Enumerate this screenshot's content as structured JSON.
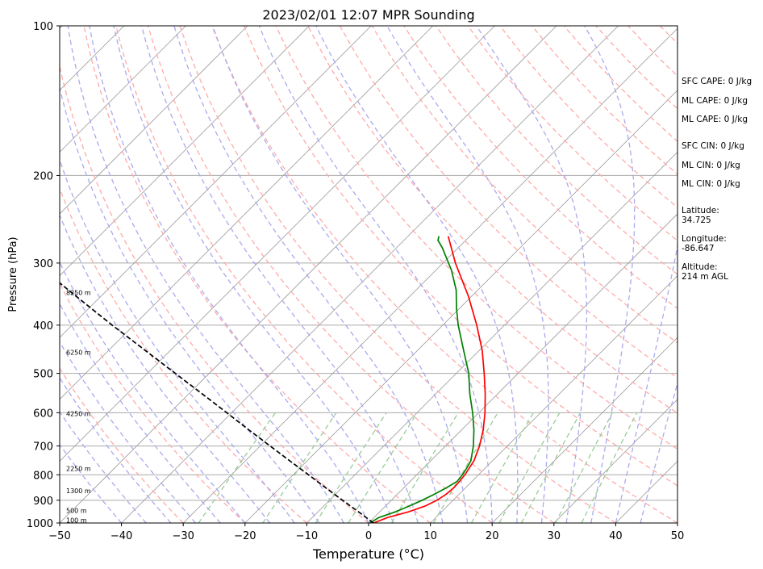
{
  "chart_data": {
    "type": "line",
    "title": "2023/02/01 12:07 MPR Sounding",
    "xlabel": "Temperature (°C)",
    "ylabel": "Pressure (hPa)",
    "xlim": [
      -50,
      50
    ],
    "ylim": [
      1000,
      100
    ],
    "y_scale": "log",
    "x_ticks": [
      -50,
      -40,
      -30,
      -20,
      -10,
      0,
      10,
      20,
      30,
      40,
      50
    ],
    "y_ticks": [
      1000,
      900,
      800,
      700,
      600,
      500,
      400,
      300,
      200,
      100
    ],
    "grid": true,
    "skew": true,
    "series": [
      {
        "color": "#ff0000",
        "points": [
          [
            1000,
            0.8
          ],
          [
            975,
            2.2
          ],
          [
            950,
            4.6
          ],
          [
            925,
            6.4
          ],
          [
            900,
            7.4
          ],
          [
            875,
            7.9
          ],
          [
            850,
            8.1
          ],
          [
            825,
            8.0
          ],
          [
            800,
            7.8
          ],
          [
            775,
            7.4
          ],
          [
            750,
            7.0
          ],
          [
            700,
            5.5
          ],
          [
            650,
            3.5
          ],
          [
            600,
            1.0
          ],
          [
            550,
            -2.0
          ],
          [
            500,
            -5.5
          ],
          [
            450,
            -9.5
          ],
          [
            400,
            -14.5
          ],
          [
            350,
            -20.5
          ],
          [
            300,
            -28.0
          ],
          [
            265,
            -33.5
          ]
        ]
      },
      {
        "color": "#008000",
        "points": [
          [
            1000,
            0.2
          ],
          [
            975,
            0.8
          ],
          [
            950,
            2.5
          ],
          [
            925,
            3.8
          ],
          [
            900,
            5.0
          ],
          [
            875,
            6.0
          ],
          [
            850,
            6.9
          ],
          [
            825,
            7.6
          ],
          [
            800,
            7.4
          ],
          [
            775,
            7.0
          ],
          [
            750,
            6.5
          ],
          [
            700,
            4.5
          ],
          [
            650,
            2.0
          ],
          [
            600,
            -1.0
          ],
          [
            550,
            -4.5
          ],
          [
            500,
            -8.0
          ],
          [
            450,
            -12.5
          ],
          [
            400,
            -17.5
          ],
          [
            370,
            -20.5
          ],
          [
            340,
            -23.5
          ],
          [
            310,
            -27.5
          ],
          [
            280,
            -32.5
          ],
          [
            270,
            -34.5
          ],
          [
            265,
            -35.0
          ]
        ]
      },
      {
        "color": "#000000",
        "dashed": true,
        "points": [
          [
            1000,
            0.8
          ],
          [
            950,
            -3.4
          ],
          [
            900,
            -7.9
          ],
          [
            850,
            -12.6
          ],
          [
            800,
            -17.5
          ],
          [
            750,
            -22.8
          ],
          [
            700,
            -28.4
          ],
          [
            650,
            -34.4
          ],
          [
            600,
            -40.8
          ],
          [
            550,
            -47.8
          ],
          [
            500,
            -55.5
          ],
          [
            450,
            -64.0
          ],
          [
            400,
            -73.5
          ],
          [
            350,
            -84.0
          ],
          [
            300,
            -96.0
          ],
          [
            270,
            -104.0
          ]
        ]
      }
    ],
    "height_labels": [
      {
        "p": 990,
        "text": "100 m"
      },
      {
        "p": 947,
        "text": "500 m"
      },
      {
        "p": 865,
        "text": "1300 m"
      },
      {
        "p": 780,
        "text": "2250 m"
      },
      {
        "p": 605,
        "text": "4250 m"
      },
      {
        "p": 455,
        "text": "6250 m"
      },
      {
        "p": 345,
        "text": "8250 m"
      }
    ],
    "annotations": {
      "sfc_cape": "SFC CAPE: 0 J/kg",
      "ml_cape_1": "ML CAPE: 0 J/kg",
      "ml_cape_2": "ML CAPE: 0 J/kg",
      "sfc_cin": "SFC CIN: 0 J/kg",
      "ml_cin_1": "ML CIN: 0 J/kg",
      "ml_cin_2": "ML CIN: 0 J/kg",
      "latitude_label": "Latitude:",
      "latitude_value": "34.725",
      "longitude_label": "Longitude:",
      "longitude_value": "-86.647",
      "altitude_label": "Altitude:",
      "altitude_value": "214 m AGL"
    },
    "colors": {
      "dry_adiabat": "#ffaaaa",
      "moist_adiabat": "#aaaaee",
      "mixing_ratio": "#99cc99",
      "isotherm": "#999999",
      "isobar": "#aaaaaa"
    }
  }
}
